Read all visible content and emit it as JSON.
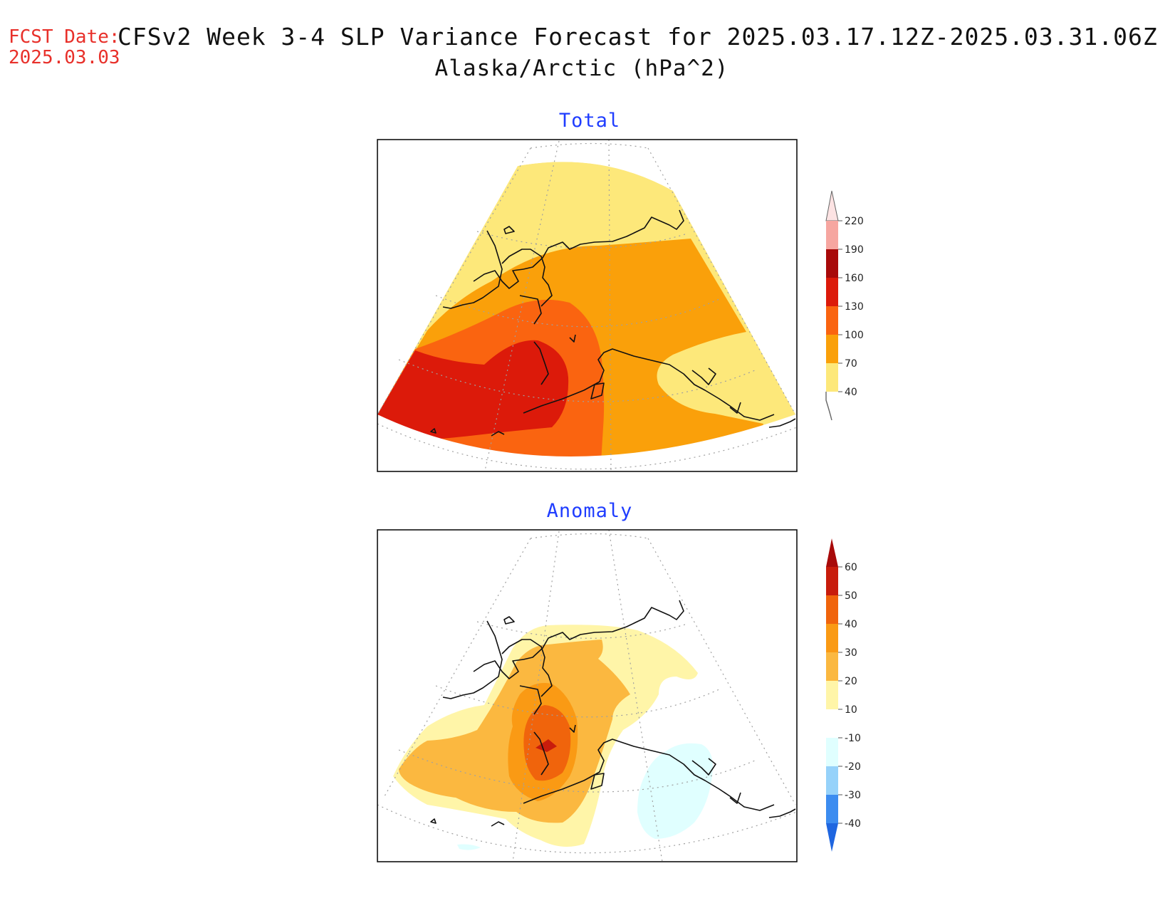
{
  "header": {
    "fcst_label": "FCST Date:",
    "fcst_date": "2025.03.03",
    "title": "CFSv2 Week 3-4 SLP Variance Forecast for 2025.03.17.12Z-2025.03.31.06Z",
    "subtitle": "Alaska/Arctic (hPa^2)"
  },
  "panels": {
    "total": {
      "title": "Total",
      "colorbar": {
        "labels": [
          "220",
          "190",
          "160",
          "130",
          "100",
          "70",
          "40"
        ],
        "colors": [
          "#f6a6a0",
          "#a80a0a",
          "#dc1a0a",
          "#fa6410",
          "#faa00a",
          "#fde87a"
        ]
      }
    },
    "anomaly": {
      "title": "Anomaly",
      "colorbar": {
        "labels": [
          "60",
          "50",
          "40",
          "30",
          "20",
          "10",
          "-10",
          "-20",
          "-30",
          "-40"
        ],
        "colors": [
          "#c81c0c",
          "#f0640c",
          "#fa9a14",
          "#fbb840",
          "#fff5a8",
          "#ffffff",
          "#e0ffff",
          "#96d2fa",
          "#3c8cf0"
        ]
      }
    }
  },
  "colors": {
    "title_red": "#e8302a",
    "panel_title_blue": "#1f3dff"
  }
}
